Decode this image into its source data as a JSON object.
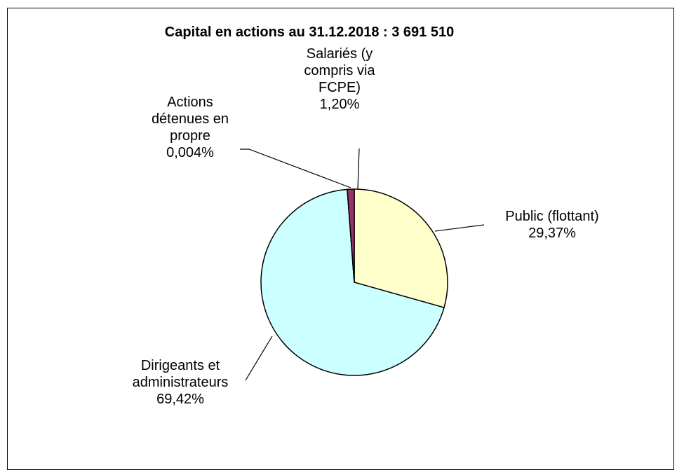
{
  "chart_data": {
    "type": "pie",
    "title": "Capital en actions au 31.12.2018 : 3 691 510",
    "slices": [
      {
        "label": [
          "Public (flottant)"
        ],
        "percent_text": "29,37%",
        "value": 29.37,
        "color": "#ffffcc"
      },
      {
        "label": [
          "Dirigeants et",
          "administrateurs"
        ],
        "percent_text": "69,42%",
        "value": 69.42,
        "color": "#ccffff"
      },
      {
        "label": [
          "Actions",
          "détenues en",
          "propre"
        ],
        "percent_text": "0,004%",
        "value": 0.004,
        "color": "#ffffff"
      },
      {
        "label": [
          "Salariés (y",
          "compris via",
          "FCPE)"
        ],
        "percent_text": "1,20%",
        "value": 1.2,
        "color": "#993366"
      }
    ]
  }
}
